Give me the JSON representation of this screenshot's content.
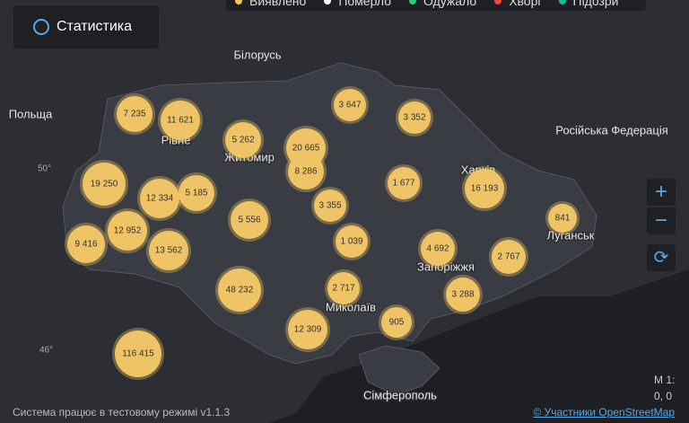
{
  "stats_button": "Статистика",
  "legend": [
    {
      "label": "Виявлено",
      "color": "#f0c75e"
    },
    {
      "label": "Померло",
      "color": "#ffffff"
    },
    {
      "label": "Одужало",
      "color": "#2ecc71"
    },
    {
      "label": "Хворі",
      "color": "#e74c3c"
    },
    {
      "label": "Підозри",
      "color": "#1abc9c"
    }
  ],
  "places": [
    "Білорусь",
    "Польща",
    "Російська Федерація",
    "Рівне",
    "Житомир",
    "Харків",
    "Луганськ",
    "Запоріжжя",
    "Миколаїв",
    "Сімферополь"
  ],
  "latitudes": [
    "50°",
    "46°"
  ],
  "bubbles": [
    "7 235",
    "11 621",
    "5 262",
    "20 665",
    "8 286",
    "3 647",
    "3 352",
    "19 250",
    "12 334",
    "5 185",
    "3 355",
    "1 677",
    "16 193",
    "841",
    "5 556",
    "12 952",
    "9 416",
    "13 562",
    "1 039",
    "4 692",
    "2 767",
    "48 232",
    "2 717",
    "3 288",
    "905",
    "12 309",
    "116 415"
  ],
  "controls": {
    "zoom_in": "+",
    "zoom_out": "−",
    "reset": "⟳"
  },
  "scale": {
    "label": "М 1:",
    "coords": "0, 0"
  },
  "footer": {
    "status": "Система працює в тестовому режимі v1.1.3",
    "attribution": "© Участники OpenStreetMap"
  }
}
